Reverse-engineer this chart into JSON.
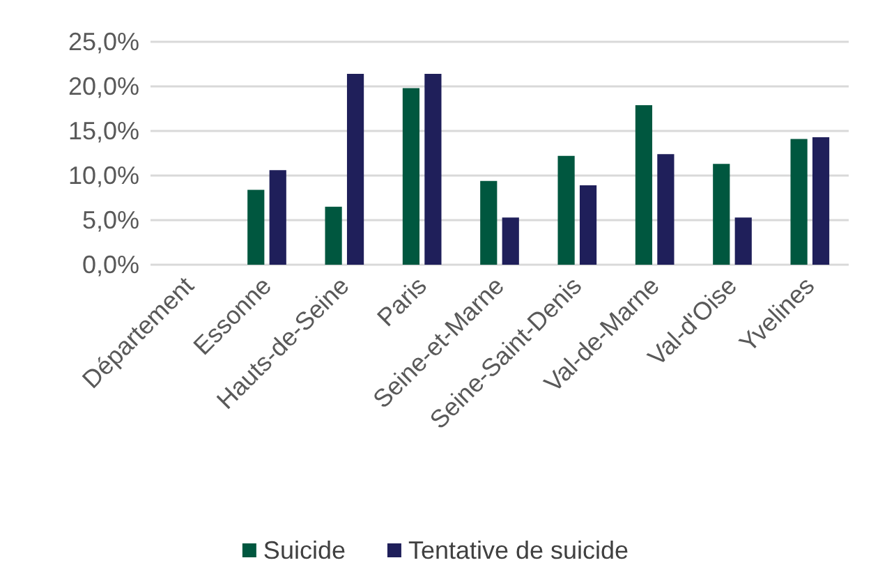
{
  "chart_data": {
    "type": "bar",
    "categories": [
      "Département",
      "Essonne",
      "Hauts-de-Seine",
      "Paris",
      "Seine-et-Marne",
      "Seine-Saint-Denis",
      "Val-de-Marne",
      "Val-d'Oise",
      "Yvelines"
    ],
    "series": [
      {
        "name": "Suicide",
        "color": "#00573f",
        "values": [
          null,
          8.4,
          6.5,
          19.8,
          9.4,
          12.2,
          17.9,
          11.3,
          14.1
        ]
      },
      {
        "name": "Tentative de suicide",
        "color": "#1f1f5a",
        "values": [
          null,
          10.6,
          21.4,
          21.4,
          5.3,
          8.9,
          12.4,
          5.3,
          14.3
        ]
      }
    ],
    "ylim": [
      0,
      25
    ],
    "yticks": [
      {
        "value": 0,
        "label": "0,0%"
      },
      {
        "value": 5,
        "label": "5,0%"
      },
      {
        "value": 10,
        "label": "10,0%"
      },
      {
        "value": 15,
        "label": "15,0%"
      },
      {
        "value": 20,
        "label": "20,0%"
      },
      {
        "value": 25,
        "label": "25,0%"
      }
    ],
    "grid": "y",
    "legend": "bottom"
  }
}
